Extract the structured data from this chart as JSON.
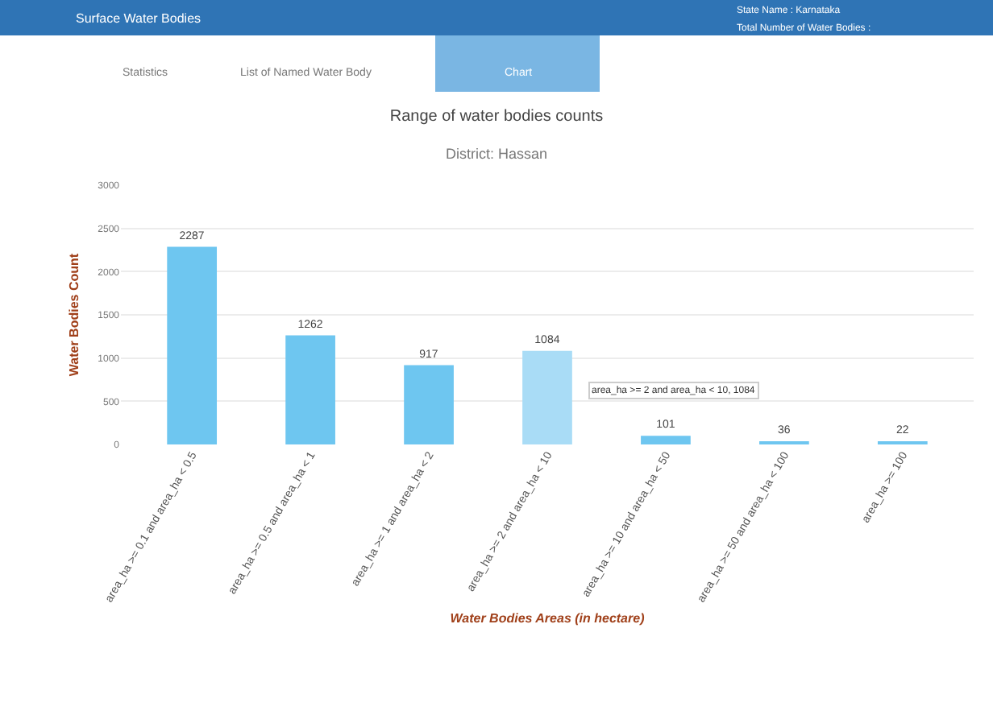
{
  "chart_data": {
    "type": "bar",
    "title": "Range of water bodies counts",
    "subtitle": "District: Hassan",
    "xlabel": "Water Bodies Areas (in hectare)",
    "ylabel": "Water Bodies Count",
    "categories": [
      "area_ha >= 0.1 and area_ha < 0.5",
      "area_ha >= 0.5 and area_ha < 1",
      "area_ha >= 1 and area_ha < 2",
      "area_ha >= 2 and area_ha < 10",
      "area_ha >= 10 and area_ha < 50",
      "area_ha >= 50 and area_ha < 100",
      "area_ha >= 100"
    ],
    "values": [
      2287,
      1262,
      917,
      1084,
      101,
      36,
      22
    ],
    "colors": [
      "#6ec6f0",
      "#6ec6f0",
      "#6ec6f0",
      "#a9dcf6",
      "#6ec6f0",
      "#6ec6f0",
      "#6ec6f0"
    ],
    "ylim": [
      0,
      3000
    ],
    "yticks": [
      0,
      500,
      1000,
      1500,
      2000,
      2500,
      3000
    ],
    "grid": "y",
    "data_labels": true,
    "annotations": [
      "Surface Water Bodies",
      "State Name : Karnataka",
      "Total Number of Water Bodies :",
      "Statistics",
      "List of Named Water Body",
      "Chart",
      "area_ha >= 2 and area_ha < 10, 1084"
    ]
  }
}
